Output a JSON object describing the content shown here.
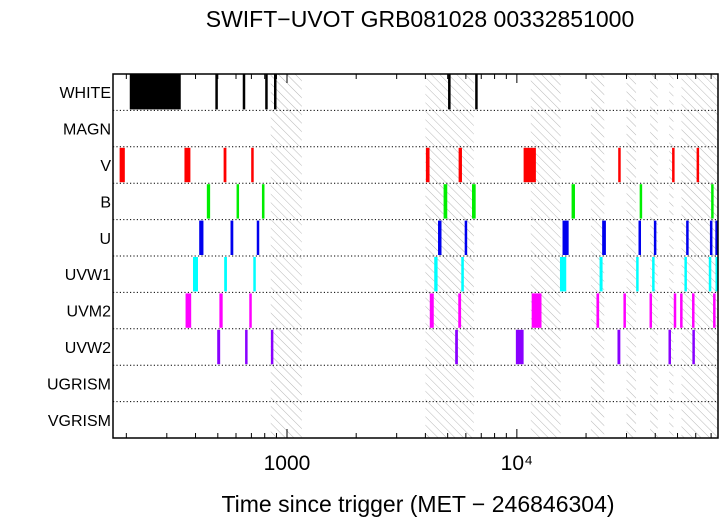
{
  "chart_data": {
    "type": "timeline",
    "title": "SWIFT−UVOT GRB081028 00332851000",
    "xlabel": "Time since trigger (MET − 246846304)",
    "x_scale": "log",
    "xlim": [
      175,
      75000
    ],
    "x_ticks": [
      {
        "value": 1000,
        "label": "1000"
      },
      {
        "value": 10000,
        "label": "10⁴"
      }
    ],
    "categories": [
      "WHITE",
      "MAGN",
      "V",
      "B",
      "U",
      "UVW1",
      "UVM2",
      "UVW2",
      "UGRISM",
      "VGRISM"
    ],
    "filter_colors": {
      "WHITE": "#000000",
      "V": "#ff0000",
      "B": "#00ee00",
      "U": "#0000ee",
      "UVW1": "#00ffff",
      "UVM2": "#ff00ff",
      "UVW2": "#8a00ff"
    },
    "hatched_intervals": [
      [
        850,
        1160
      ],
      [
        4000,
        6500
      ],
      [
        11500,
        15500
      ],
      [
        21000,
        24000
      ],
      [
        30000,
        33000
      ],
      [
        38000,
        41000
      ],
      [
        46000,
        48000
      ],
      [
        52000,
        75000
      ]
    ],
    "series": [
      {
        "name": "WHITE",
        "intervals": [
          [
            207,
            345
          ],
          [
            488,
            500
          ],
          [
            644,
            656
          ],
          [
            806,
            822
          ],
          [
            885,
            893
          ],
          [
            5020,
            5150
          ],
          [
            6620,
            6720
          ]
        ]
      },
      {
        "name": "MAGN",
        "intervals": []
      },
      {
        "name": "V",
        "intervals": [
          [
            187,
            197
          ],
          [
            358,
            380
          ],
          [
            530,
            545
          ],
          [
            700,
            715
          ],
          [
            4020,
            4170
          ],
          [
            5580,
            5770
          ],
          [
            10700,
            12100
          ],
          [
            27600,
            28300
          ],
          [
            47600,
            48300
          ],
          [
            61000,
            61600
          ]
        ]
      },
      {
        "name": "B",
        "intervals": [
          [
            448,
            463
          ],
          [
            605,
            617
          ],
          [
            778,
            798
          ],
          [
            4800,
            4980
          ],
          [
            6380,
            6620
          ],
          [
            17300,
            17900
          ],
          [
            34400,
            34900
          ],
          [
            70500,
            71300
          ]
        ]
      },
      {
        "name": "U",
        "intervals": [
          [
            415,
            433
          ],
          [
            568,
            584
          ],
          [
            740,
            756
          ],
          [
            4540,
            4700
          ],
          [
            5930,
            6080
          ],
          [
            15800,
            16800
          ],
          [
            23500,
            24400
          ],
          [
            34000,
            34500
          ],
          [
            39700,
            40200
          ],
          [
            55000,
            55400
          ],
          [
            69800,
            70300
          ],
          [
            73500,
            74400
          ]
        ]
      },
      {
        "name": "UVW1",
        "intervals": [
          [
            390,
            410
          ],
          [
            533,
            548
          ],
          [
            715,
            730
          ],
          [
            4370,
            4520
          ],
          [
            5730,
            5880
          ],
          [
            15400,
            16400
          ],
          [
            22900,
            23600
          ],
          [
            33200,
            33700
          ],
          [
            39000,
            39500
          ],
          [
            54000,
            54500
          ],
          [
            69000,
            69500
          ],
          [
            73600,
            74500
          ]
        ]
      },
      {
        "name": "UVM2",
        "intervals": [
          [
            362,
            383
          ],
          [
            508,
            525
          ],
          [
            686,
            702
          ],
          [
            4180,
            4350
          ],
          [
            5560,
            5720
          ],
          [
            11600,
            12800
          ],
          [
            22200,
            22800
          ],
          [
            29200,
            29700
          ],
          [
            38000,
            38500
          ],
          [
            48500,
            49000
          ],
          [
            51700,
            52200
          ],
          [
            58300,
            58800
          ],
          [
            72000,
            72600
          ]
        ]
      },
      {
        "name": "UVW2",
        "intervals": [
          [
            497,
            512
          ],
          [
            659,
            672
          ],
          [
            857,
            866
          ],
          [
            5390,
            5540
          ],
          [
            9900,
            10700
          ],
          [
            27400,
            28200
          ],
          [
            46000,
            46500
          ],
          [
            58500,
            59000
          ]
        ]
      },
      {
        "name": "UGRISM",
        "intervals": []
      },
      {
        "name": "VGRISM",
        "intervals": []
      }
    ],
    "grid": "dotted horizontal row separators",
    "legend": "none"
  }
}
